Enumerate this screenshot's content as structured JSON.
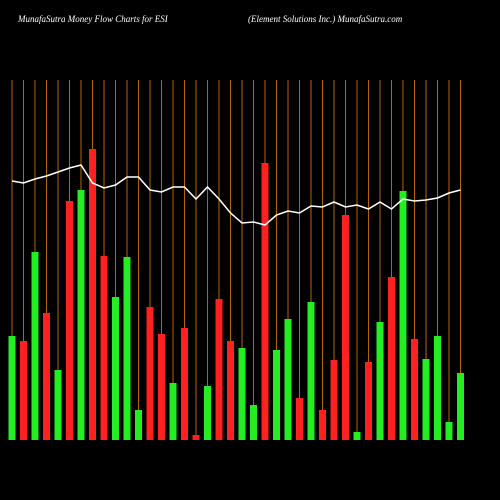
{
  "chart_data": {
    "type": "bar",
    "title": "MunafaSutra  Money Flow  Charts for ESI",
    "subtitle": "(Element Solutions Inc.) MunafaSutra.com",
    "ylim": [
      0,
      360
    ],
    "guide_color": "#b8620a",
    "series": [
      {
        "type": "bar",
        "colors": [
          "#22ee22",
          "#ff2020",
          "#22ee22",
          "#ff2020",
          "#22ee22",
          "#ff2020",
          "#22ee22",
          "#ff2020",
          "#ff2020",
          "#22ee22",
          "#22ee22",
          "#22ee22",
          "#ff2020",
          "#ff2020",
          "#22ee22",
          "#ff2020",
          "#ff2020",
          "#22ee22",
          "#ff2020",
          "#ff2020",
          "#22ee22",
          "#22ee22",
          "#ff2020",
          "#22ee22",
          "#22ee22",
          "#ff2020",
          "#22ee22",
          "#ff2020",
          "#ff2020",
          "#ff2020",
          "#22ee22",
          "#ff2020",
          "#22ee22",
          "#ff2020",
          "#22ee22",
          "#ff2020",
          "#22ee22",
          "#22ee22",
          "#22ee22",
          "#22ee22"
        ],
        "values": [
          104,
          99,
          188,
          127,
          70,
          239,
          250,
          291,
          184,
          143,
          183,
          30,
          133,
          106,
          57,
          112,
          5,
          54,
          141,
          99,
          92,
          35,
          277,
          90,
          121,
          42,
          138,
          30,
          80,
          225,
          8,
          78,
          118,
          163,
          249,
          101,
          81,
          104,
          18,
          67
        ]
      },
      {
        "type": "line",
        "color": "#ffffff",
        "values": [
          259,
          257,
          261,
          264,
          268,
          272,
          275,
          257,
          252,
          255,
          263,
          263,
          250,
          248,
          253,
          253,
          241,
          253,
          241,
          227,
          217,
          218,
          215,
          225,
          229,
          227,
          234,
          233,
          238,
          233,
          235,
          231,
          238,
          231,
          241,
          239,
          240,
          242,
          247,
          250
        ]
      }
    ]
  }
}
